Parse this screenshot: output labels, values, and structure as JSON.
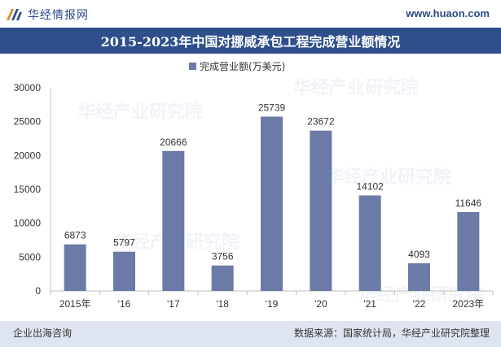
{
  "header": {
    "brand_name": "华经情报网",
    "site_url": "www.huaon.com"
  },
  "title": "2015-2023年中国对挪威承包工程完成营业额情况",
  "legend": {
    "label": "完成营业额(万美元)",
    "color": "#6b7aa6"
  },
  "watermark": {
    "text": "华经产业研究院",
    "url": "www.huaon.com"
  },
  "footer": {
    "left": "企业出海咨询",
    "right": "数据来源：国家统计局，华经产业研究院整理"
  },
  "chart_data": {
    "type": "bar",
    "categories": [
      "2015年",
      "'16",
      "'17",
      "'18",
      "'19",
      "'20",
      "'21",
      "'22",
      "2023年"
    ],
    "series": [
      {
        "name": "完成营业额(万美元)",
        "values": [
          6873,
          5797,
          20666,
          3756,
          25739,
          23672,
          14102,
          4093,
          11646
        ]
      }
    ],
    "ylim": [
      0,
      30000
    ],
    "yticks": [
      0,
      5000,
      10000,
      15000,
      20000,
      25000,
      30000
    ],
    "bar_color": "#6b7aa6",
    "data_labels": true,
    "grid": false,
    "legend_position": "top"
  }
}
